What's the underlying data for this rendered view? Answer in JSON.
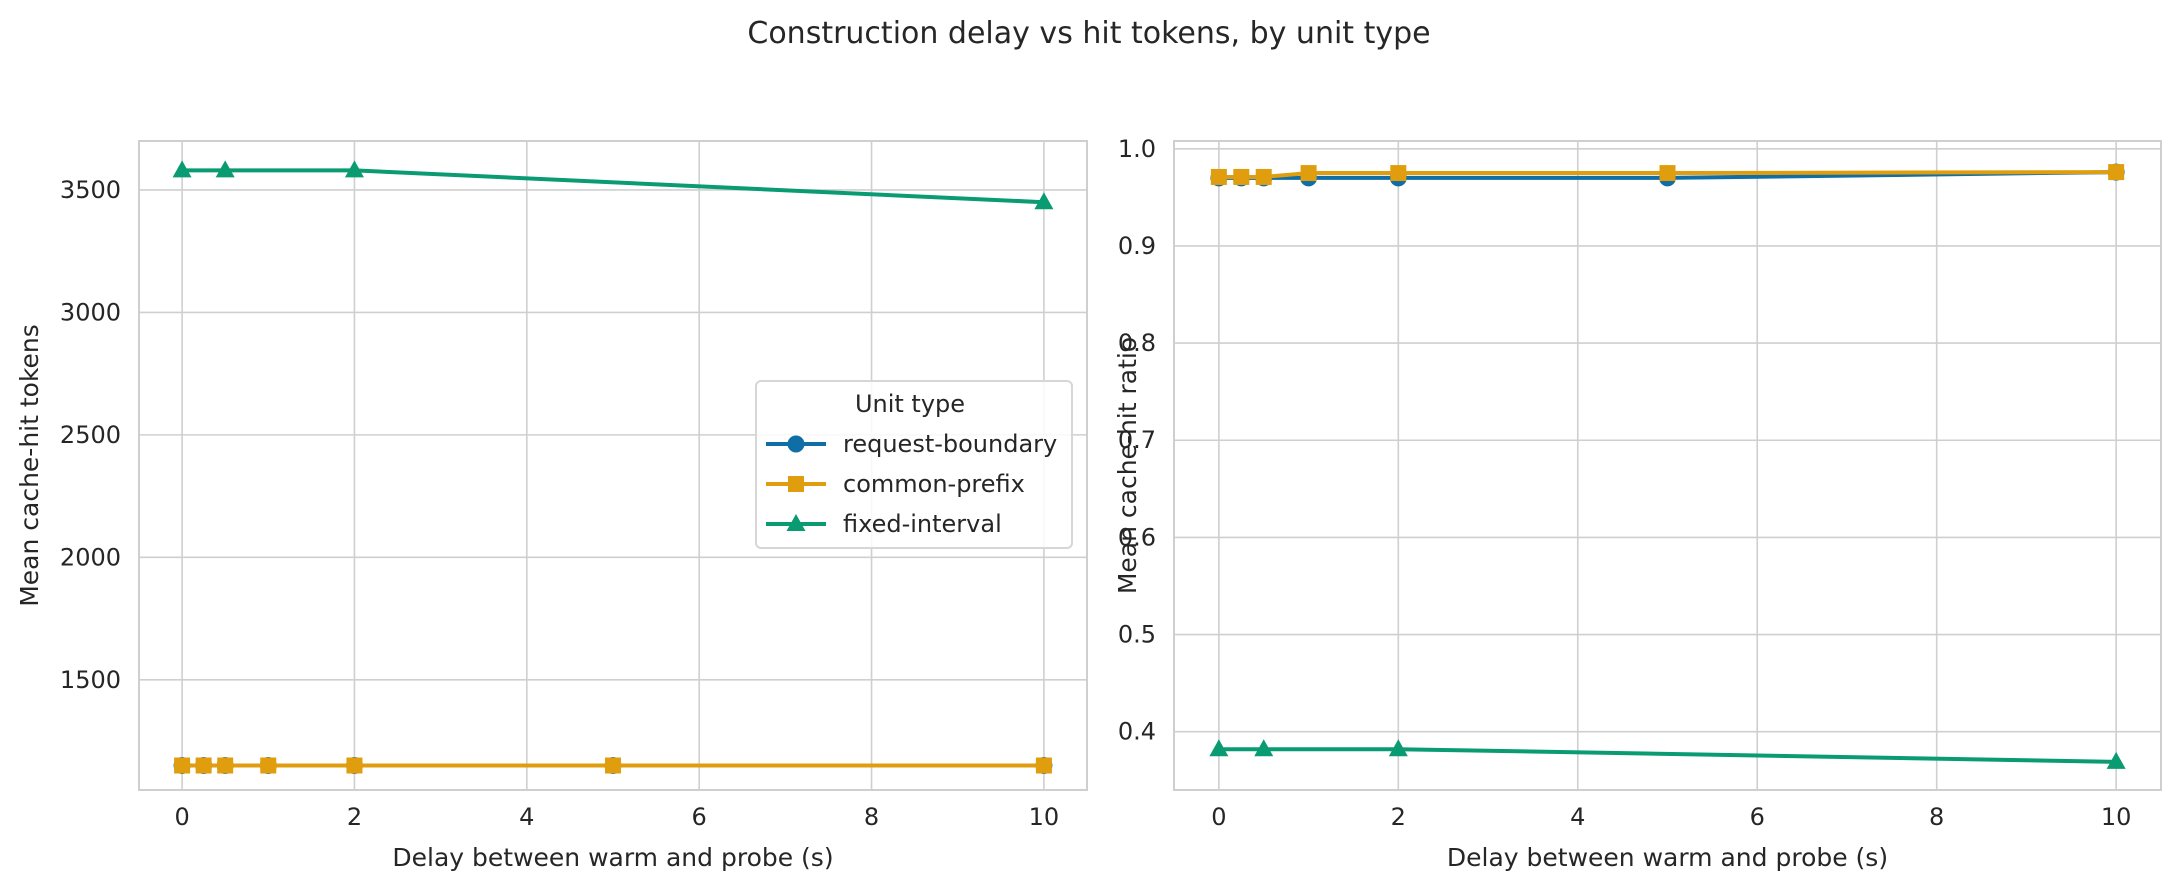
{
  "figure": {
    "title": "Construction delay vs hit tokens, by unit type"
  },
  "colors": {
    "request-boundary": "#0f6ea6",
    "common-prefix": "#e09e0f",
    "fixed-interval": "#0a9b72",
    "grid": "#cfcfcf",
    "frame": "#cfcfcf",
    "legend_border": "#d6d6d6"
  },
  "legend": {
    "title": "Unit type",
    "placement": "center-right",
    "entries": [
      "request-boundary",
      "common-prefix",
      "fixed-interval"
    ]
  },
  "chart_data": [
    {
      "type": "line",
      "xlabel": "Delay between warm and probe (s)",
      "ylabel": "Mean cache-hit tokens",
      "xlim": [
        -0.5,
        10.5
      ],
      "ylim": [
        1050,
        3700
      ],
      "xticks": [
        0,
        2,
        4,
        6,
        8,
        10
      ],
      "yticks": [
        1500,
        2000,
        2500,
        3000,
        3500
      ],
      "xtick_labels": [
        "0",
        "2",
        "4",
        "6",
        "8",
        "10"
      ],
      "ytick_labels": [
        "1500",
        "2000",
        "2500",
        "3000",
        "3500"
      ],
      "grid": true,
      "series": [
        {
          "name": "request-boundary",
          "marker": "circle",
          "x": [
            0,
            0.25,
            0.5,
            1,
            2,
            5,
            10
          ],
          "y": [
            1150,
            1150,
            1150,
            1150,
            1150,
            1150,
            1150
          ]
        },
        {
          "name": "common-prefix",
          "marker": "square",
          "x": [
            0,
            0.25,
            0.5,
            1,
            2,
            5,
            10
          ],
          "y": [
            1150,
            1150,
            1150,
            1150,
            1150,
            1150,
            1150
          ]
        },
        {
          "name": "fixed-interval",
          "marker": "triangle",
          "x": [
            0,
            0.5,
            2,
            10
          ],
          "y": [
            3580,
            3580,
            3580,
            3450
          ]
        }
      ]
    },
    {
      "type": "line",
      "xlabel": "Delay between warm and probe (s)",
      "ylabel": "Mean cache-hit ratio",
      "xlim": [
        -0.5,
        10.5
      ],
      "ylim": [
        0.34,
        1.008
      ],
      "xticks": [
        0,
        2,
        4,
        6,
        8,
        10
      ],
      "yticks": [
        0.4,
        0.5,
        0.6,
        0.7,
        0.8,
        0.9,
        1.0
      ],
      "xtick_labels": [
        "0",
        "2",
        "4",
        "6",
        "8",
        "10"
      ],
      "ytick_labels": [
        "0.4",
        "0.5",
        "0.6",
        "0.7",
        "0.8",
        "0.9",
        "1.0"
      ],
      "grid": true,
      "series": [
        {
          "name": "request-boundary",
          "marker": "circle",
          "x": [
            0,
            0.25,
            0.5,
            1,
            2,
            5,
            10
          ],
          "y": [
            0.97,
            0.97,
            0.97,
            0.97,
            0.97,
            0.97,
            0.976
          ]
        },
        {
          "name": "common-prefix",
          "marker": "square",
          "x": [
            0,
            0.25,
            0.5,
            1,
            2,
            5,
            10
          ],
          "y": [
            0.971,
            0.971,
            0.971,
            0.975,
            0.975,
            0.975,
            0.976
          ]
        },
        {
          "name": "fixed-interval",
          "marker": "triangle",
          "x": [
            0,
            0.5,
            2,
            10
          ],
          "y": [
            0.382,
            0.382,
            0.382,
            0.369
          ]
        }
      ]
    }
  ]
}
